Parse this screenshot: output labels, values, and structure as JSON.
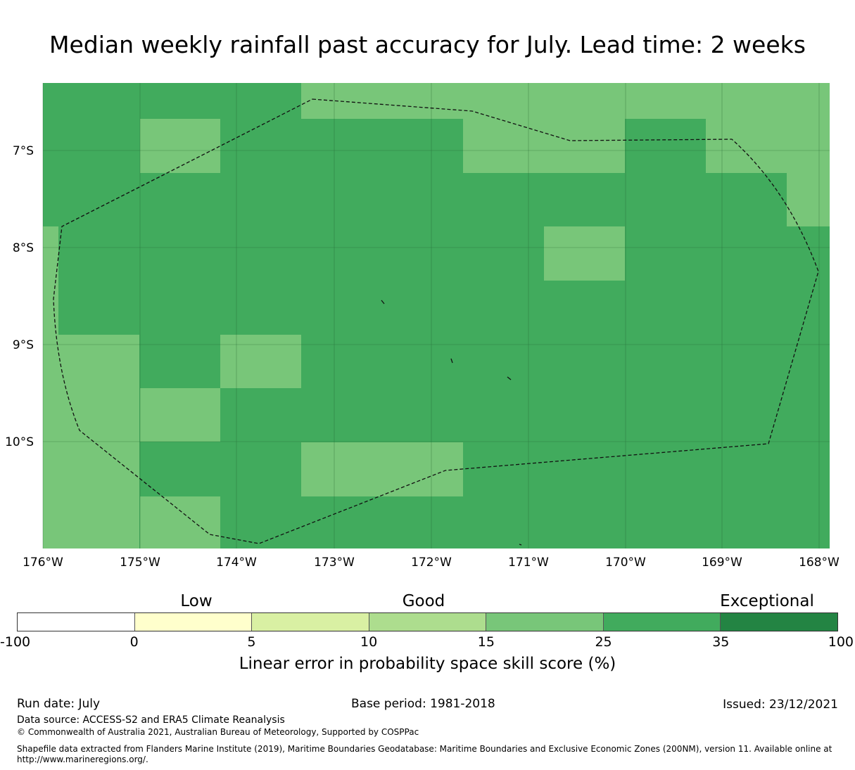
{
  "title": "Median weekly rainfall past accuracy for July. Lead time: 2 weeks",
  "map": {
    "lat_labels": [
      "7°S",
      "8°S",
      "9°S",
      "10°S"
    ],
    "lon_labels": [
      "176°W",
      "175°W",
      "174°W",
      "173°W",
      "172°W",
      "171°W",
      "170°W",
      "169°W",
      "168°W"
    ],
    "colors": {
      "good_light": "#78c679",
      "good_medium": "#41ab5d"
    }
  },
  "colorbar": {
    "categories": {
      "low": "Low",
      "good": "Good",
      "exceptional": "Exceptional"
    },
    "ticks": [
      "-100",
      "0",
      "5",
      "10",
      "15",
      "25",
      "35",
      "100"
    ],
    "colors": [
      "#ffffff",
      "#ffffcc",
      "#d9f0a3",
      "#addd8e",
      "#78c679",
      "#41ab5d",
      "#238443"
    ],
    "label": "Linear error in probability space skill score (%)"
  },
  "footer": {
    "run_date": "Run date: July",
    "base_period": "Base period: 1981-2018",
    "issued": "Issued: 23/12/2021",
    "data_source": "Data source: ACCESS-S2 and ERA5 Climate Reanalysis",
    "copyright": "© Commonwealth of Australia 2021, Australian Bureau of Meteorology, Supported by COSPPac",
    "shapefile_line1": "Shapefile data extracted from Flanders Marine Institute (2019), Maritime Boundaries Geodatabase: Maritime Boundaries and Exclusive Economic Zones (200NM), version 11. Available online at",
    "shapefile_line2": "http://www.marineregions.org/."
  }
}
